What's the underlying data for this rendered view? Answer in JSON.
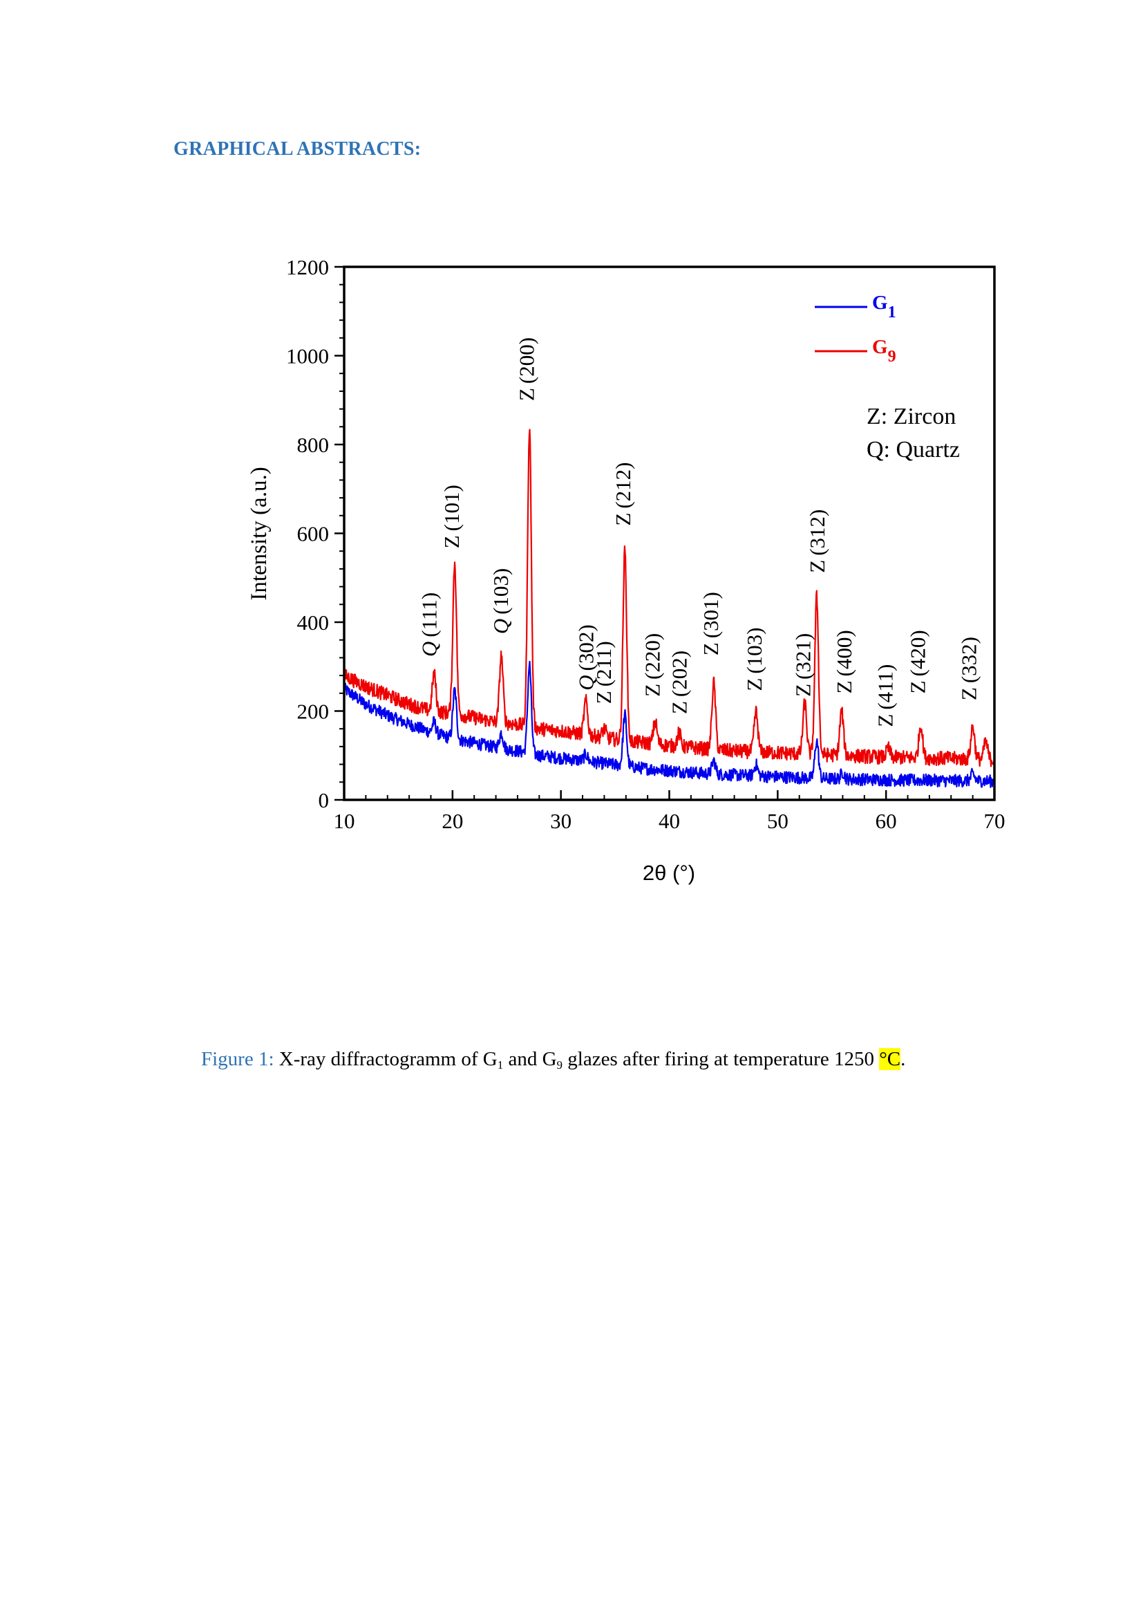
{
  "heading": "GRAPHICAL ABSTRACTS:",
  "chart_data": {
    "type": "line",
    "xlabel": "2θ (°)",
    "ylabel": "Intensity (a.u.)",
    "xlim": [
      10,
      70
    ],
    "ylim": [
      0,
      1200
    ],
    "xticks": [
      10,
      20,
      30,
      40,
      50,
      60,
      70
    ],
    "yticks": [
      0,
      200,
      400,
      600,
      800,
      1000,
      1200
    ],
    "legend_position": "top-right",
    "series": [
      {
        "name": "G",
        "sub": "1",
        "color": "#0000ee",
        "noise": 14,
        "x": [
          10,
          12,
          14,
          16,
          18,
          20,
          22,
          24,
          26,
          28,
          30,
          32,
          34,
          36,
          38,
          40,
          42,
          44,
          46,
          48,
          50,
          52,
          54,
          56,
          58,
          60,
          62,
          64,
          66,
          68,
          70
        ],
        "y": [
          250,
          215,
          190,
          170,
          152,
          138,
          128,
          118,
          110,
          100,
          94,
          88,
          82,
          76,
          70,
          66,
          62,
          58,
          56,
          54,
          52,
          50,
          48,
          47,
          46,
          45,
          44,
          44,
          43,
          43,
          42
        ],
        "peaks": [
          [
            18.3,
            25
          ],
          [
            20.2,
            110
          ],
          [
            24.5,
            35
          ],
          [
            27.1,
            200
          ],
          [
            32.3,
            15
          ],
          [
            35.9,
            115
          ],
          [
            44.1,
            30
          ],
          [
            48,
            25
          ],
          [
            53.6,
            85
          ],
          [
            56,
            15
          ],
          [
            68,
            15
          ]
        ]
      },
      {
        "name": "G",
        "sub": "9",
        "color": "#ee0000",
        "noise": 16,
        "x": [
          10,
          12,
          14,
          16,
          18,
          20,
          22,
          24,
          26,
          28,
          30,
          32,
          34,
          36,
          38,
          40,
          42,
          44,
          46,
          48,
          50,
          52,
          54,
          56,
          58,
          60,
          62,
          64,
          66,
          68,
          70
        ],
        "y": [
          280,
          255,
          235,
          215,
          200,
          195,
          185,
          175,
          170,
          160,
          155,
          148,
          140,
          132,
          128,
          122,
          118,
          113,
          110,
          108,
          106,
          104,
          102,
          100,
          98,
          96,
          95,
          94,
          93,
          92,
          90
        ],
        "peaks": [
          [
            18.3,
            85
          ],
          [
            20.2,
            340
          ],
          [
            24.5,
            150
          ],
          [
            27.1,
            675
          ],
          [
            32.3,
            75
          ],
          [
            34,
            20
          ],
          [
            35.9,
            430
          ],
          [
            38.7,
            50
          ],
          [
            40.9,
            30
          ],
          [
            44.1,
            150
          ],
          [
            48,
            90
          ],
          [
            52.5,
            115
          ],
          [
            53.6,
            355
          ],
          [
            55.9,
            100
          ],
          [
            60.2,
            20
          ],
          [
            63.2,
            75
          ],
          [
            68,
            75
          ],
          [
            69.2,
            40
          ]
        ]
      }
    ],
    "annotations": [
      {
        "x": 18.5,
        "y": 322,
        "phase": "Q",
        "hkl": "(111)"
      },
      {
        "x": 20.6,
        "y": 566,
        "phase": "Z",
        "hkl": "(101)"
      },
      {
        "x": 25.1,
        "y": 373,
        "phase": "Q",
        "hkl": "(103)"
      },
      {
        "x": 27.5,
        "y": 898,
        "phase": "Z",
        "hkl": "(200)"
      },
      {
        "x": 33.0,
        "y": 246,
        "phase": "Q",
        "hkl": "(302)"
      },
      {
        "x": 34.6,
        "y": 216,
        "phase": "Z",
        "hkl": "(211)"
      },
      {
        "x": 36.4,
        "y": 617,
        "phase": "Z",
        "hkl": "(212)"
      },
      {
        "x": 39.1,
        "y": 232,
        "phase": "Z",
        "hkl": "(220)"
      },
      {
        "x": 41.6,
        "y": 193,
        "phase": "Z",
        "hkl": "(202)"
      },
      {
        "x": 44.5,
        "y": 325,
        "phase": "Z",
        "hkl": "(301)"
      },
      {
        "x": 48.5,
        "y": 245,
        "phase": "Z",
        "hkl": "(103)"
      },
      {
        "x": 53.0,
        "y": 232,
        "phase": "Z",
        "hkl": "(321)"
      },
      {
        "x": 54.3,
        "y": 511,
        "phase": "Z",
        "hkl": "(312)"
      },
      {
        "x": 56.8,
        "y": 239,
        "phase": "Z",
        "hkl": "(400)"
      },
      {
        "x": 60.6,
        "y": 164,
        "phase": "Z",
        "hkl": "(411)"
      },
      {
        "x": 63.6,
        "y": 239,
        "phase": "Z",
        "hkl": "(420)"
      },
      {
        "x": 68.3,
        "y": 224,
        "phase": "Z",
        "hkl": "(332)"
      }
    ],
    "phase_key": [
      "Z: Zircon",
      "Q: Quartz"
    ]
  },
  "caption": {
    "label": "Figure 1:",
    "text_a": " X-ray diffractogramm of G",
    "sub_a": "1",
    "text_b": " and G",
    "sub_b": "9",
    "text_c": " glazes after firing at temperature 1250 ",
    "unit_highlight": "°C",
    "end": "."
  }
}
